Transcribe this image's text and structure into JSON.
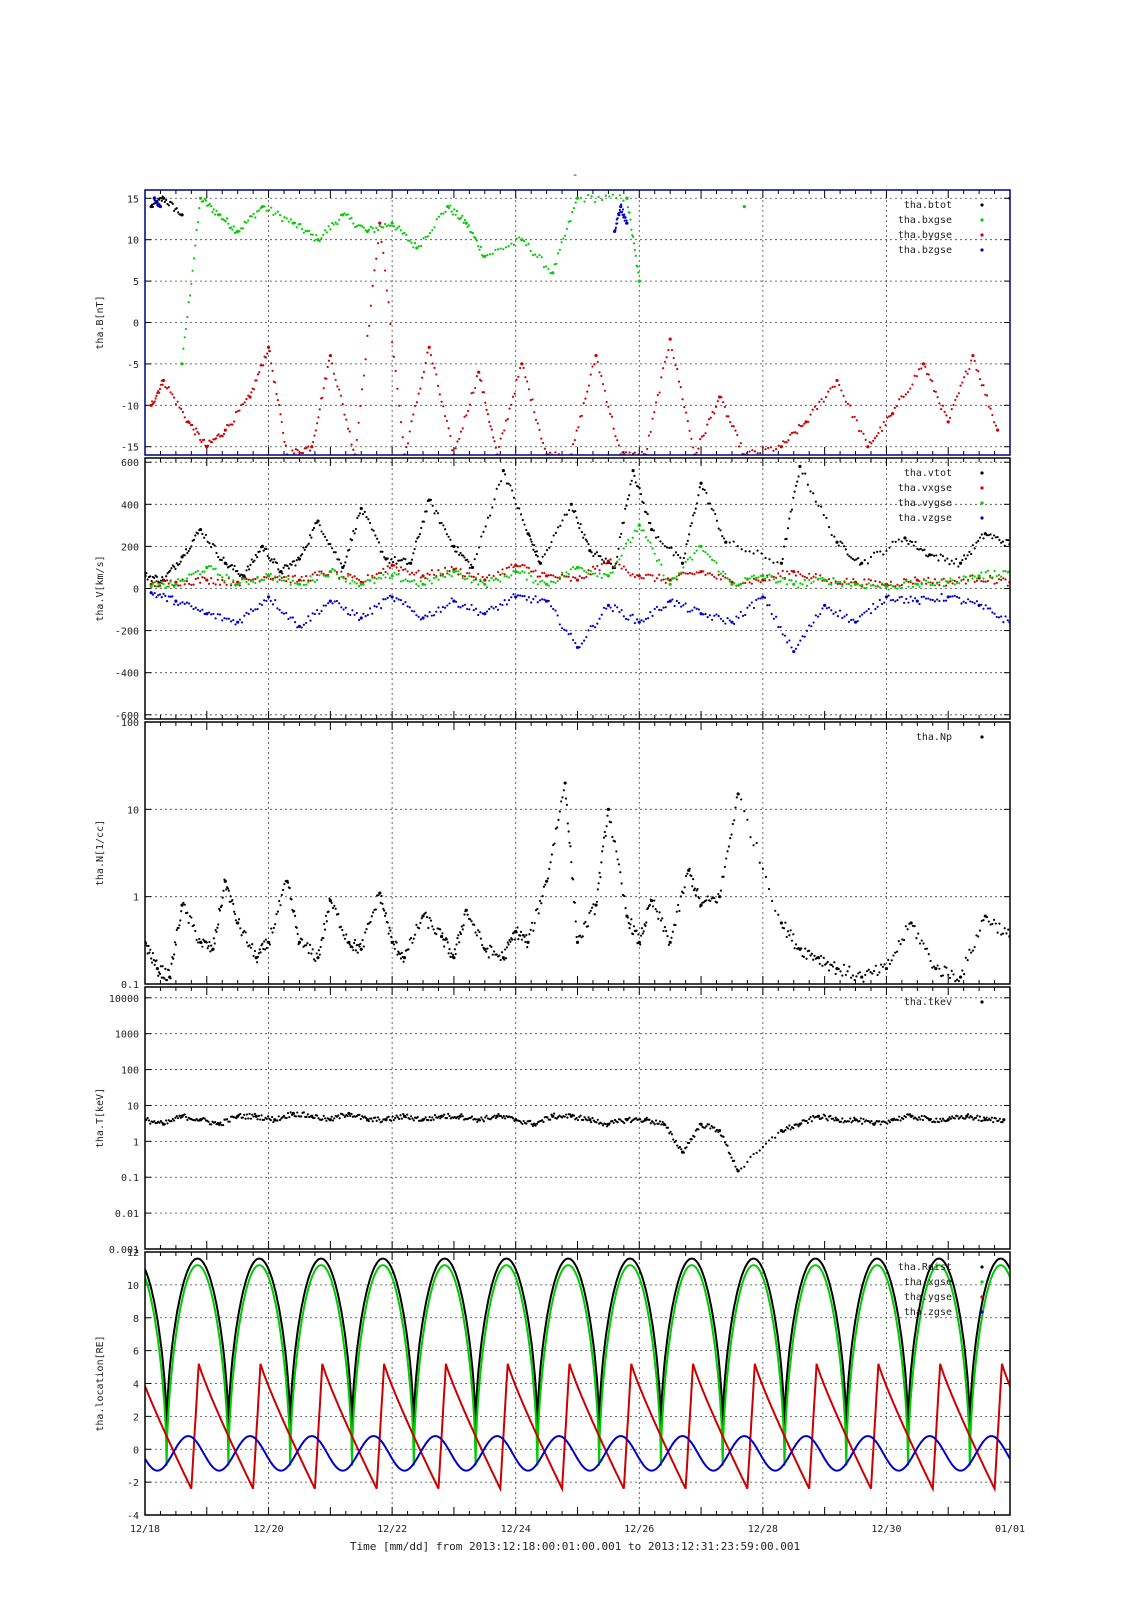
{
  "figure": {
    "title": "-",
    "time_label": "Time [mm/dd]  from 2013:12:18:00:01:00.001  to  2013:12:31:23:59:00.001",
    "x_ticks": [
      "12/18",
      "12/20",
      "12/22",
      "12/24",
      "12/26",
      "12/28",
      "12/30",
      "01/01"
    ]
  },
  "colors": {
    "black": "#000000",
    "red": "#cc0000",
    "green": "#00cc00",
    "blue": "#0000cc",
    "frame": "#000000",
    "grid": "#444444"
  },
  "chart_data": [
    {
      "type": "scatter",
      "ylabel": "tha.B[nT]",
      "ylim": [
        -16,
        16
      ],
      "yticks": [
        15,
        10,
        5,
        0,
        -5,
        -10,
        -15
      ],
      "ytick_labels": [
        "15",
        "10",
        "5",
        "0",
        "-5",
        "-10",
        "-15"
      ],
      "x_range_days": [
        0,
        14
      ],
      "legend_placement": "top-right",
      "series": [
        {
          "name": "tha.btot",
          "color": "black",
          "x": [
            0.1,
            0.3,
            0.6,
            14
          ],
          "y": [
            14,
            15,
            13,
            15
          ]
        },
        {
          "name": "tha.bxgse",
          "color": "green",
          "x": [
            0.6,
            0.9,
            1.2,
            1.5,
            1.9,
            2.4,
            2.8,
            3.2,
            3.6,
            4.0,
            4.4,
            4.9,
            5.2,
            5.5,
            6.1,
            6.6,
            7.0,
            7.8,
            8.0,
            9.7
          ],
          "y": [
            -5,
            15,
            13,
            11,
            14,
            12,
            10,
            13,
            11,
            12,
            9,
            14,
            12,
            8,
            10,
            6,
            15,
            15,
            5,
            14
          ]
        },
        {
          "name": "tha.bygse",
          "color": "red",
          "x": [
            0.1,
            0.3,
            0.7,
            1.0,
            1.3,
            1.7,
            2.0,
            2.3,
            2.7,
            3.0,
            3.4,
            3.8,
            4.2,
            4.6,
            5.0,
            5.4,
            5.7,
            6.1,
            6.5,
            6.9,
            7.3,
            7.7,
            8.1,
            8.5,
            8.9,
            9.3,
            9.7,
            10.3,
            10.7,
            11.2,
            11.7,
            12.1,
            12.6,
            13.0,
            13.4,
            13.8
          ],
          "y": [
            -10,
            -7,
            -12,
            -15,
            -13,
            -9,
            -3,
            -16,
            -15,
            -4,
            -16,
            12,
            -16,
            -3,
            -16,
            -6,
            -16,
            -5,
            -16,
            -16,
            -4,
            -16,
            -16,
            -2,
            -16,
            -9,
            -16,
            -15,
            -12,
            -7,
            -15,
            -11,
            -5,
            -12,
            -4,
            -13
          ]
        },
        {
          "name": "tha.bzgse",
          "color": "blue",
          "x": [
            0.15,
            0.25,
            7.6,
            7.7,
            7.8
          ],
          "y": [
            15,
            14,
            11,
            14,
            12
          ]
        }
      ]
    },
    {
      "type": "scatter",
      "ylabel": "tha.V[km/s]",
      "ylim": [
        -620,
        620
      ],
      "yticks": [
        600,
        400,
        200,
        0,
        -200,
        -400,
        -600
      ],
      "ytick_labels": [
        "600",
        "400",
        "200",
        "0",
        "-200",
        "-400",
        "-600"
      ],
      "x_range_days": [
        0,
        14
      ],
      "legend_placement": "top-right",
      "series": [
        {
          "name": "tha.vtot",
          "color": "black",
          "x": [
            0.0,
            0.3,
            0.6,
            0.9,
            1.3,
            1.6,
            1.9,
            2.2,
            2.5,
            2.8,
            3.2,
            3.5,
            3.9,
            4.3,
            4.6,
            5.0,
            5.3,
            5.8,
            6.2,
            6.4,
            6.9,
            7.2,
            7.6,
            7.9,
            8.2,
            8.7,
            9.0,
            9.4,
            10.3,
            10.6,
            11.2,
            11.6,
            12.3,
            12.7,
            13.2,
            13.6,
            14.0
          ],
          "y": [
            60,
            40,
            150,
            280,
            120,
            60,
            200,
            80,
            140,
            320,
            100,
            380,
            140,
            120,
            420,
            200,
            100,
            560,
            260,
            120,
            400,
            180,
            100,
            560,
            280,
            120,
            500,
            220,
            120,
            580,
            220,
            120,
            240,
            160,
            120,
            260,
            210
          ]
        },
        {
          "name": "tha.vxgse",
          "color": "red",
          "x": [
            0.1,
            0.5,
            1.0,
            1.5,
            2.0,
            2.5,
            3.0,
            3.5,
            4.0,
            4.5,
            5.0,
            5.5,
            6.0,
            6.5,
            7.0,
            7.5,
            8.0,
            8.5,
            9.0,
            9.5,
            10.0,
            10.5,
            11.0,
            11.5,
            12.0,
            12.5,
            13.0,
            13.5,
            14.0
          ],
          "y": [
            20,
            30,
            40,
            30,
            60,
            40,
            80,
            30,
            110,
            60,
            90,
            40,
            110,
            60,
            40,
            130,
            60,
            40,
            80,
            30,
            40,
            80,
            40,
            30,
            20,
            40,
            30,
            50,
            30
          ]
        },
        {
          "name": "tha.vygse",
          "color": "green",
          "x": [
            0.1,
            0.5,
            1.0,
            1.5,
            2.0,
            2.5,
            3.0,
            3.5,
            4.0,
            4.5,
            5.0,
            5.5,
            6.0,
            6.5,
            7.0,
            7.5,
            8.0,
            8.5,
            9.0,
            9.5,
            10.0,
            10.5,
            11.0,
            11.5,
            12.0,
            12.5,
            13.0,
            13.5,
            14.0
          ],
          "y": [
            10,
            20,
            100,
            20,
            60,
            20,
            80,
            20,
            60,
            20,
            80,
            20,
            80,
            20,
            100,
            60,
            300,
            20,
            200,
            20,
            60,
            20,
            40,
            20,
            10,
            20,
            30,
            60,
            80
          ]
        },
        {
          "name": "tha.vzgse",
          "color": "blue",
          "x": [
            0.1,
            0.5,
            1.0,
            1.5,
            2.0,
            2.5,
            3.0,
            3.5,
            4.0,
            4.5,
            5.0,
            5.5,
            6.0,
            6.5,
            7.0,
            7.5,
            8.0,
            8.5,
            9.0,
            9.5,
            10.0,
            10.5,
            11.0,
            11.5,
            12.0,
            12.5,
            13.0,
            13.5,
            14.0
          ],
          "y": [
            -20,
            -60,
            -120,
            -160,
            -40,
            -180,
            -60,
            -140,
            -40,
            -140,
            -60,
            -120,
            -40,
            -60,
            -280,
            -80,
            -160,
            -60,
            -120,
            -160,
            -40,
            -300,
            -80,
            -160,
            -40,
            -60,
            -40,
            -80,
            -160
          ]
        }
      ]
    },
    {
      "type": "scatter",
      "ylabel": "tha.N[1/cc]",
      "yscale": "log",
      "ylim": [
        0.1,
        100
      ],
      "yticks": [
        100,
        10,
        1,
        0.1
      ],
      "ytick_labels": [
        "100",
        "10",
        "1",
        "0.1"
      ],
      "x_range_days": [
        0,
        14
      ],
      "legend_placement": "top-right",
      "series": [
        {
          "name": "tha.Np",
          "color": "black",
          "x": [
            0.0,
            0.2,
            0.4,
            0.6,
            0.9,
            1.1,
            1.3,
            1.5,
            1.8,
            2.0,
            2.3,
            2.5,
            2.8,
            3.0,
            3.3,
            3.5,
            3.8,
            4.0,
            4.2,
            4.5,
            4.8,
            5.0,
            5.2,
            5.5,
            5.8,
            6.0,
            6.2,
            6.5,
            6.8,
            7.0,
            7.3,
            7.5,
            7.8,
            8.0,
            8.2,
            8.5,
            8.8,
            9.0,
            9.3,
            9.6,
            10.3,
            10.6,
            10.9,
            11.2,
            11.6,
            12.0,
            12.4,
            12.8,
            13.2,
            13.6,
            14.0
          ],
          "y": [
            0.3,
            0.15,
            0.12,
            0.8,
            0.3,
            0.25,
            1.5,
            0.5,
            0.2,
            0.3,
            1.5,
            0.3,
            0.2,
            0.9,
            0.3,
            0.25,
            1.1,
            0.3,
            0.2,
            0.6,
            0.35,
            0.2,
            0.7,
            0.25,
            0.2,
            0.4,
            0.3,
            1.5,
            20,
            0.3,
            0.8,
            10,
            0.6,
            0.3,
            0.9,
            0.3,
            2.0,
            0.8,
            1.0,
            15,
            0.5,
            0.25,
            0.2,
            0.15,
            0.12,
            0.15,
            0.5,
            0.15,
            0.12,
            0.6,
            0.35
          ]
        }
      ]
    },
    {
      "type": "scatter",
      "ylabel": "tha.T[keV]",
      "yscale": "log",
      "ylim": [
        0.001,
        20000
      ],
      "yticks": [
        10000,
        1000,
        100,
        10,
        1,
        0.1,
        0.01,
        0.001
      ],
      "ytick_labels": [
        "10000",
        "1000",
        "100",
        "10",
        "1",
        "0.1",
        "0.01",
        "0.001"
      ],
      "x_range_days": [
        0,
        14
      ],
      "legend_placement": "top-right",
      "series": [
        {
          "name": "tha.tkev",
          "color": "black",
          "x": [
            0.0,
            0.3,
            0.6,
            0.9,
            1.2,
            1.5,
            1.8,
            2.1,
            2.4,
            2.7,
            3.0,
            3.3,
            3.6,
            3.9,
            4.2,
            4.5,
            4.8,
            5.1,
            5.4,
            5.7,
            6.0,
            6.3,
            6.6,
            6.9,
            7.2,
            7.5,
            7.8,
            8.1,
            8.4,
            8.7,
            9.0,
            9.3,
            9.6,
            10.3,
            10.6,
            10.9,
            11.2,
            11.5,
            11.8,
            12.1,
            12.4,
            12.7,
            13.0,
            13.3,
            13.6,
            13.9
          ],
          "y": [
            4,
            3,
            5,
            4,
            3,
            5,
            5,
            4,
            6,
            5,
            4,
            6,
            4,
            4,
            5,
            4,
            5,
            5,
            4,
            5,
            4,
            3,
            5,
            5,
            4,
            3,
            4,
            4,
            3,
            0.5,
            3,
            2,
            0.15,
            2,
            3,
            5,
            4,
            4,
            3,
            4,
            5,
            4,
            4,
            5,
            4,
            4
          ]
        }
      ]
    },
    {
      "type": "line",
      "ylabel": "tha.location[RE]",
      "ylim": [
        -4,
        12
      ],
      "yticks": [
        12,
        10,
        8,
        6,
        4,
        2,
        0,
        -2,
        -4
      ],
      "ytick_labels": [
        "12",
        "10",
        "8",
        "6",
        "4",
        "2",
        "0",
        "-2",
        "-4"
      ],
      "x_range_days": [
        0,
        14
      ],
      "legend_placement": "top-right",
      "orbit_period_days": 1.0,
      "series": [
        {
          "name": "tha.Rdist",
          "color": "black",
          "peak": 11.6,
          "min": 1.1,
          "phase": 0.35
        },
        {
          "name": "tha.xgse",
          "color": "green",
          "peak": 11.2,
          "min": -1.0,
          "phase": 0.35
        },
        {
          "name": "tha.ygse",
          "color": "red",
          "peak": 5.2,
          "min": -2.4,
          "phase": 0.75
        },
        {
          "name": "tha.zgse",
          "color": "blue",
          "peak": 0.8,
          "min": -1.3,
          "phase": 0.7
        }
      ]
    }
  ]
}
